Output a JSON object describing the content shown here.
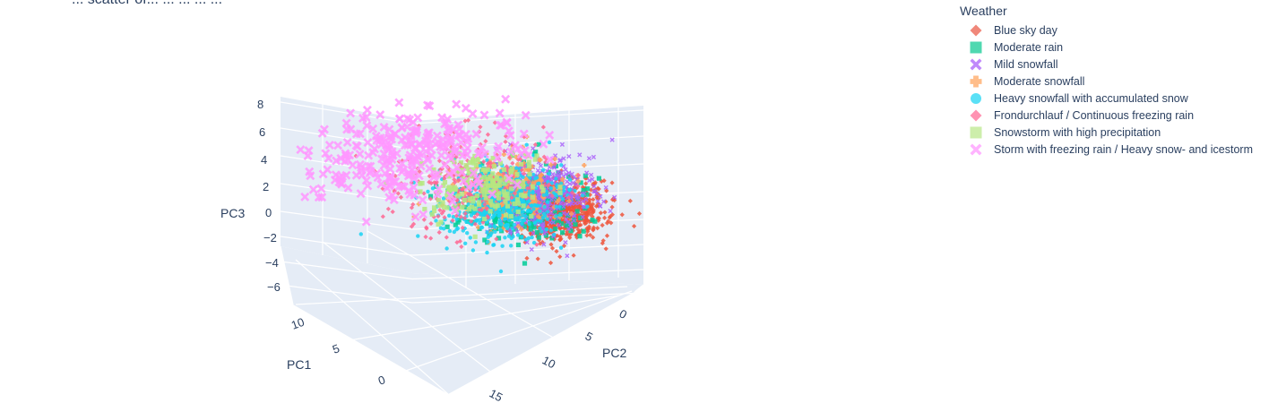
{
  "page": {
    "title_fragment": "... scatter of... ... ... ... ..."
  },
  "chart_data": {
    "type": "scatter",
    "subtype": "scatter3d",
    "legend": {
      "title": "Weather",
      "placement": "top-right"
    },
    "axes": {
      "x": {
        "title": "PC1",
        "ticks": [
          "0",
          "5",
          "10"
        ],
        "range": [
          -3,
          12
        ]
      },
      "y": {
        "title": "PC2",
        "ticks": [
          "0",
          "5",
          "10",
          "15"
        ],
        "range": [
          -2,
          16
        ]
      },
      "z": {
        "title": "PC3",
        "ticks": [
          "8",
          "6",
          "4",
          "2",
          "0",
          "−2",
          "−4",
          "−6"
        ],
        "range": [
          -7,
          9
        ]
      }
    },
    "grid": true,
    "series": [
      {
        "name": "Blue sky day",
        "symbol": "diamond",
        "color": "#ef553b",
        "legend_color": "#f0877a",
        "center": [
          3.5,
          1.0,
          -0.5
        ],
        "spread": [
          1.4,
          1.2,
          1.2
        ],
        "count": 700
      },
      {
        "name": "Moderate rain",
        "symbol": "square",
        "color": "#00cc96",
        "legend_color": "#4fd8b0",
        "center": [
          4.5,
          3.0,
          0.5
        ],
        "spread": [
          1.6,
          1.8,
          1.5
        ],
        "count": 300
      },
      {
        "name": "Mild snowfall",
        "symbol": "x",
        "color": "#ab63fa",
        "legend_color": "#c089fb",
        "center": [
          4.0,
          2.0,
          1.0
        ],
        "spread": [
          1.6,
          1.4,
          1.4
        ],
        "count": 450
      },
      {
        "name": "Moderate snowfall",
        "symbol": "cross",
        "color": "#ffa15a",
        "legend_color": "#ffbd8a",
        "center": [
          5.0,
          3.5,
          1.5
        ],
        "spread": [
          1.5,
          1.6,
          1.4
        ],
        "count": 300
      },
      {
        "name": "Heavy snowfall with accumulated snow",
        "symbol": "circle",
        "color": "#19d3f3",
        "legend_color": "#5ae0f6",
        "center": [
          5.0,
          4.0,
          0.5
        ],
        "spread": [
          1.5,
          1.8,
          1.6
        ],
        "count": 450
      },
      {
        "name": "Frondurchlauf / Continuous freezing rain",
        "symbol": "diamond",
        "color": "#ff6692",
        "legend_color": "#ff93b2",
        "center": [
          6.0,
          5.5,
          2.5
        ],
        "spread": [
          2.0,
          2.4,
          2.0
        ],
        "count": 260
      },
      {
        "name": "Snowstorm with high precipitation",
        "symbol": "square",
        "color": "#b6e880",
        "legend_color": "#cdeeab",
        "center": [
          6.0,
          5.0,
          2.0
        ],
        "spread": [
          1.6,
          1.8,
          1.4
        ],
        "count": 180
      },
      {
        "name": "Storm with freezing rain / Heavy snow- and icestorm",
        "symbol": "x",
        "color": "#ff97ff",
        "legend_color": "#ffb3ff",
        "center": [
          7.5,
          8.5,
          5.0
        ],
        "spread": [
          2.2,
          3.2,
          1.8
        ],
        "count": 280
      }
    ]
  }
}
